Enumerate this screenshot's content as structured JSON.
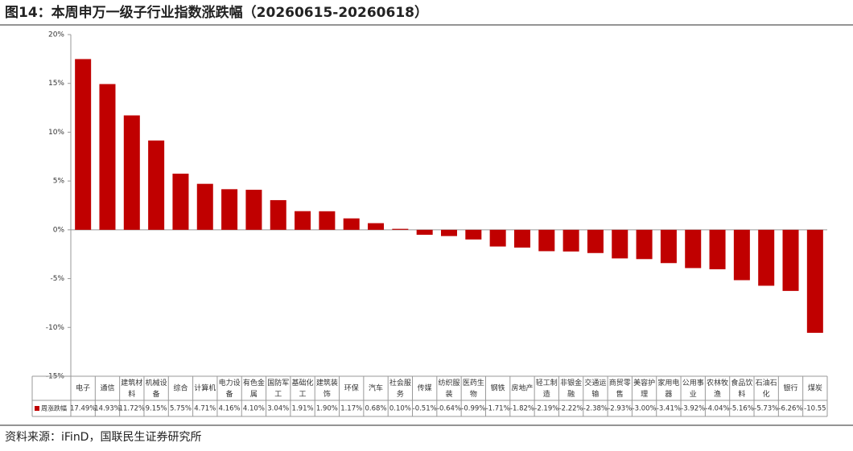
{
  "title": "图14：本周申万一级子行业指数涨跌幅（20260615-20260618）",
  "source": "资料来源：iFinD，国联民生证券研究所",
  "chart_data": {
    "type": "bar",
    "categories": [
      "电子",
      "通信",
      "建筑材料",
      "机械设备",
      "综合",
      "计算机",
      "电力设备",
      "有色金属",
      "国防军工",
      "基础化工",
      "建筑装饰",
      "环保",
      "汽车",
      "社会服务",
      "传媒",
      "纺织服装",
      "医药生物",
      "钢铁",
      "房地产",
      "轻工制造",
      "非银金融",
      "交通运输",
      "商贸零售",
      "美容护理",
      "家用电器",
      "公用事业",
      "农林牧渔",
      "食品饮料",
      "石油石化",
      "银行",
      "煤炭"
    ],
    "series": [
      {
        "name": "周涨跌幅",
        "color": "#c00000",
        "values": [
          17.49,
          14.93,
          11.72,
          9.15,
          5.75,
          4.71,
          4.16,
          4.1,
          3.04,
          1.91,
          1.9,
          1.17,
          0.68,
          0.1,
          -0.51,
          -0.64,
          -0.99,
          -1.71,
          -1.82,
          -2.19,
          -2.22,
          -2.38,
          -2.93,
          -3.0,
          -3.41,
          -3.92,
          -4.04,
          -5.16,
          -5.73,
          -6.26,
          -10.55
        ],
        "value_labels": [
          "17.49%",
          "14.93%",
          "11.72%",
          "9.15%",
          "5.75%",
          "4.71%",
          "4.16%",
          "4.10%",
          "3.04%",
          "1.91%",
          "1.90%",
          "1.17%",
          "0.68%",
          "0.10%",
          "-0.51%",
          "-0.64%",
          "-0.99%",
          "-1.71%",
          "-1.82%",
          "-2.19%",
          "-2.22%",
          "-2.38%",
          "-2.93%",
          "-3.00%",
          "-3.41%",
          "-3.92%",
          "-4.04%",
          "-5.16%",
          "-5.73%",
          "-6.26%",
          "-10.55"
        ]
      }
    ],
    "ylim": [
      -15,
      20
    ],
    "yticks": [
      {
        "value": -15,
        "label": "-15%"
      },
      {
        "value": -10,
        "label": "-10%"
      },
      {
        "value": -5,
        "label": "-5%"
      },
      {
        "value": 0,
        "label": "0%"
      },
      {
        "value": 5,
        "label": "5%"
      },
      {
        "value": 10,
        "label": "10%"
      },
      {
        "value": 15,
        "label": "15%"
      },
      {
        "value": 20,
        "label": "20%"
      }
    ]
  }
}
